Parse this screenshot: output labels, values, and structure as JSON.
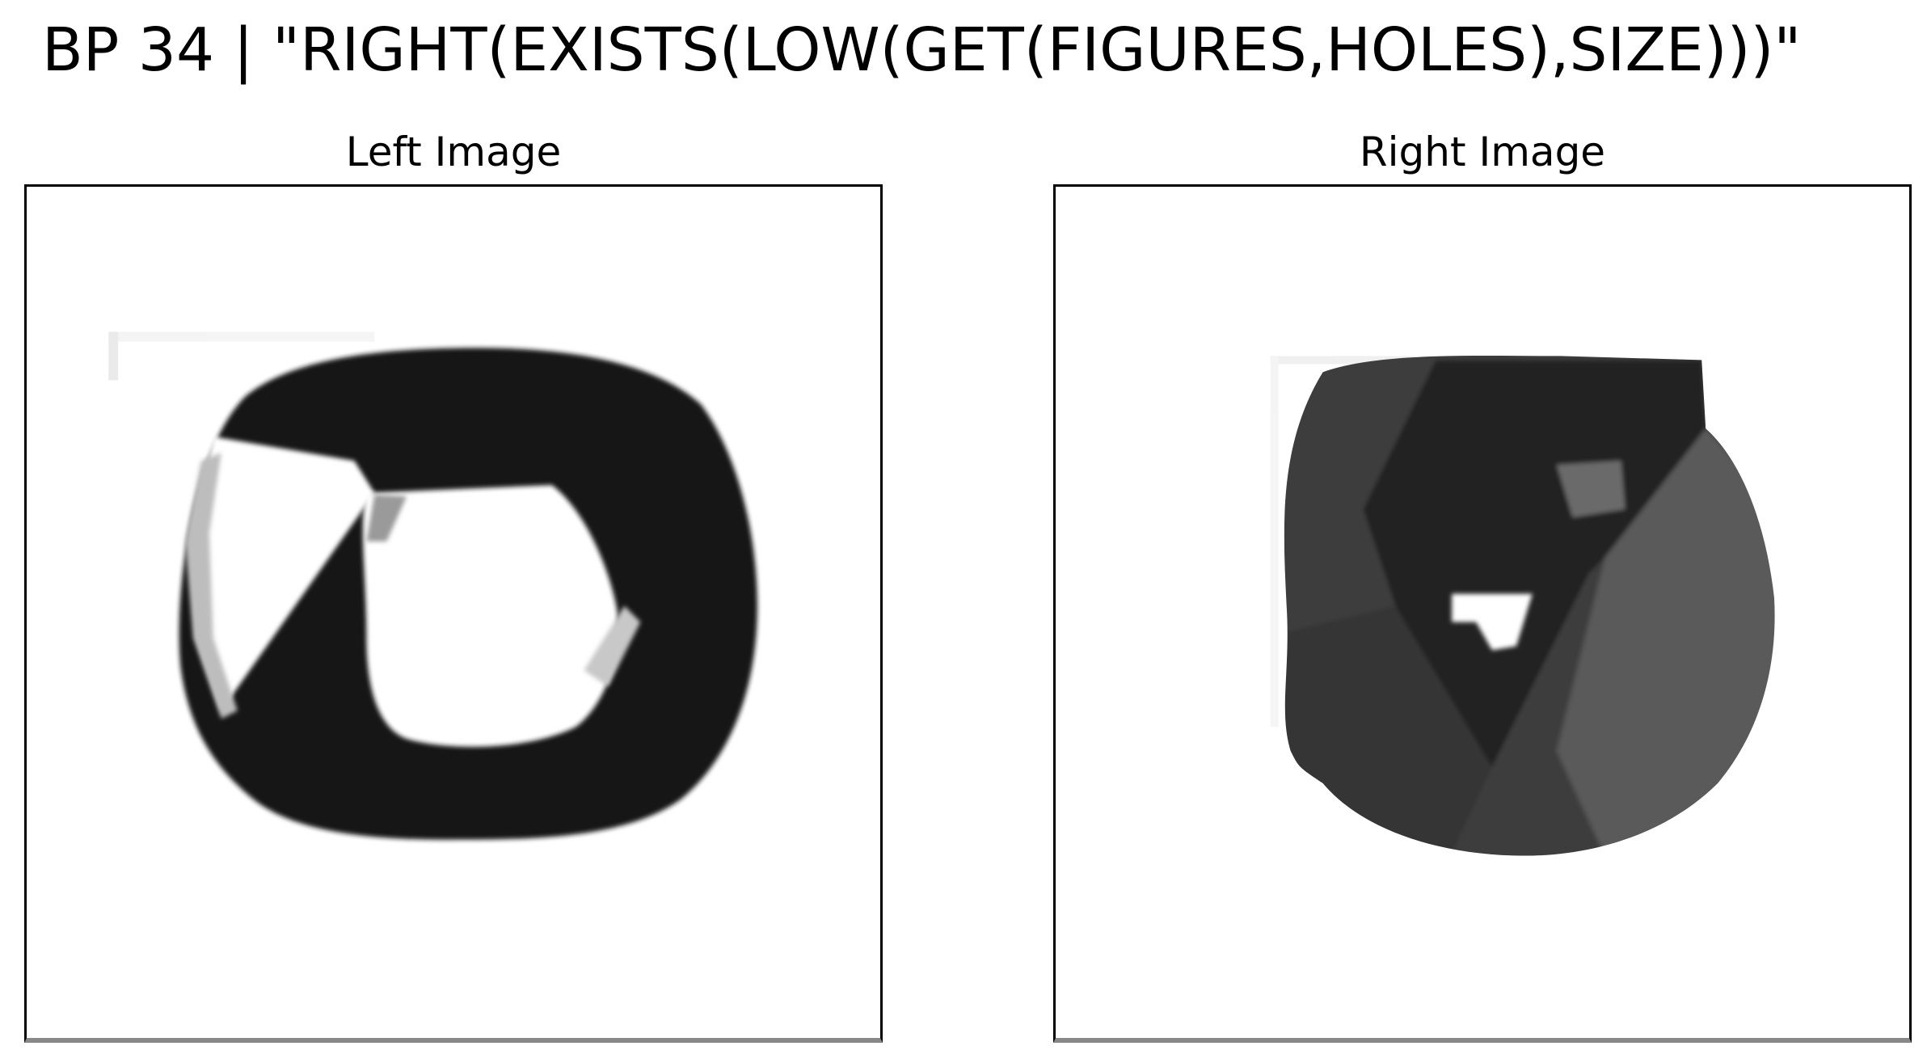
{
  "figure": {
    "title": "BP 34 | \"RIGHT(EXISTS(LOW(GET(FIGURES,HOLES),SIZE)))\""
  },
  "panels": [
    {
      "title": "Left Image"
    },
    {
      "title": "Right Image"
    }
  ],
  "colors": {
    "left_shape_fill": "#141414",
    "right_shape_fill": "#3e3e3e",
    "right_shape_dark_facet": "#242424",
    "right_shape_light_facet": "#5a5a5a",
    "background": "#ffffff"
  }
}
